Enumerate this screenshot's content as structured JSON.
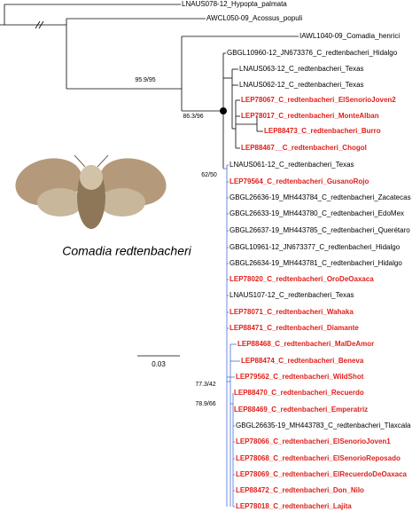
{
  "tree": {
    "tips": [
      {
        "label": "LNAUS078-12_Hypopta_palmata",
        "color": "#000000"
      },
      {
        "label": "AWCL050-09_Acossus_populi",
        "color": "#000000"
      },
      {
        "label": "IAWL1040-09_Comadia_henrici",
        "color": "#000000"
      },
      {
        "label": "GBGL10960-12_JN673376_C_redtenbacheri_Hidalgo",
        "color": "#000000"
      },
      {
        "label": "LNAUS063-12_C_redtenbacheri_Texas",
        "color": "#000000"
      },
      {
        "label": "LNAUS062-12_C_redtenbacheri_Texas",
        "color": "#000000"
      },
      {
        "label": "LEP78067_C_redtenbacheri_ElSenorioJoven2",
        "color": "#e0201b"
      },
      {
        "label": "LEP78017_C_redtenbacheri_MonteAlban",
        "color": "#e0201b"
      },
      {
        "label": "LEP88473_C_redtenbacheri_Burro",
        "color": "#e0201b"
      },
      {
        "label": "LEP88467__C_redtenbacheri_Chogol",
        "color": "#e0201b"
      },
      {
        "label": "LNAUS061-12_C_redtenbacheri_Texas",
        "color": "#000000"
      },
      {
        "label": "LEP79564_C_redtenbacheri_GusanoRojo",
        "color": "#e0201b"
      },
      {
        "label": "GBGL26636-19_MH443784_C_redtenbacheri_Zacatecas",
        "color": "#000000"
      },
      {
        "label": "GBGL26633-19_MH443780_C_redtenbacheri_EdoMex",
        "color": "#000000"
      },
      {
        "label": "GBGL26637-19_MH443785_C_redtenbacheri_Querétaro",
        "color": "#000000"
      },
      {
        "label": "GBGL10961-12_JN673377_C_redtenbacheri_Hidalgo",
        "color": "#000000"
      },
      {
        "label": "GBGL26634-19_MH443781_C_redtenbacheri_Hidalgo",
        "color": "#000000"
      },
      {
        "label": "LEP78020_C_redtenbacheri_OroDeOaxaca",
        "color": "#e0201b"
      },
      {
        "label": "LNAUS107-12_C_redtenbacheri_Texas",
        "color": "#000000"
      },
      {
        "label": "LEP78071_C_redtenbacheri_Wahaka",
        "color": "#e0201b"
      },
      {
        "label": "LEP88471_C_redtenbacheri_Diamante",
        "color": "#e0201b"
      },
      {
        "label": "LEP88468_C_redtenbacheri_MalDeAmor",
        "color": "#e0201b"
      },
      {
        "label": "LEP88474_C_redtenbacheri_Beneva",
        "color": "#e0201b"
      },
      {
        "label": "LEP79562_C_redtenbacheri_WildShot",
        "color": "#e0201b"
      },
      {
        "label": "LEP88470_C_redtenbacheri_Recuerdo",
        "color": "#e0201b"
      },
      {
        "label": "LEP88469_C_redtenbacheri_Emperatriz",
        "color": "#e0201b"
      },
      {
        "label": "GBGL26635-19_MH443783_C_redtenbacheri_Tlaxcala",
        "color": "#000000"
      },
      {
        "label": "LEP78066_C_redtenbacheri_ElSenorioJoven1",
        "color": "#e0201b"
      },
      {
        "label": "LEP78068_C_redtenbacheri_ElSenorioReposado",
        "color": "#e0201b"
      },
      {
        "label": "LEP78069_C_redtenbacheri_ElRecuerdoDeOaxaca",
        "color": "#e0201b"
      },
      {
        "label": "LEP88472_C_redtenbacheri_Don_Nilo",
        "color": "#e0201b"
      },
      {
        "label": "LEP78018_C_redtenbacheri_Lajita",
        "color": "#e0201b"
      }
    ],
    "support": [
      "95.9/95",
      "86.3/96",
      "62/50",
      "77.3/42",
      "78.9/66"
    ],
    "scale": "0.03",
    "species": "Comadia redtenbacheri"
  }
}
